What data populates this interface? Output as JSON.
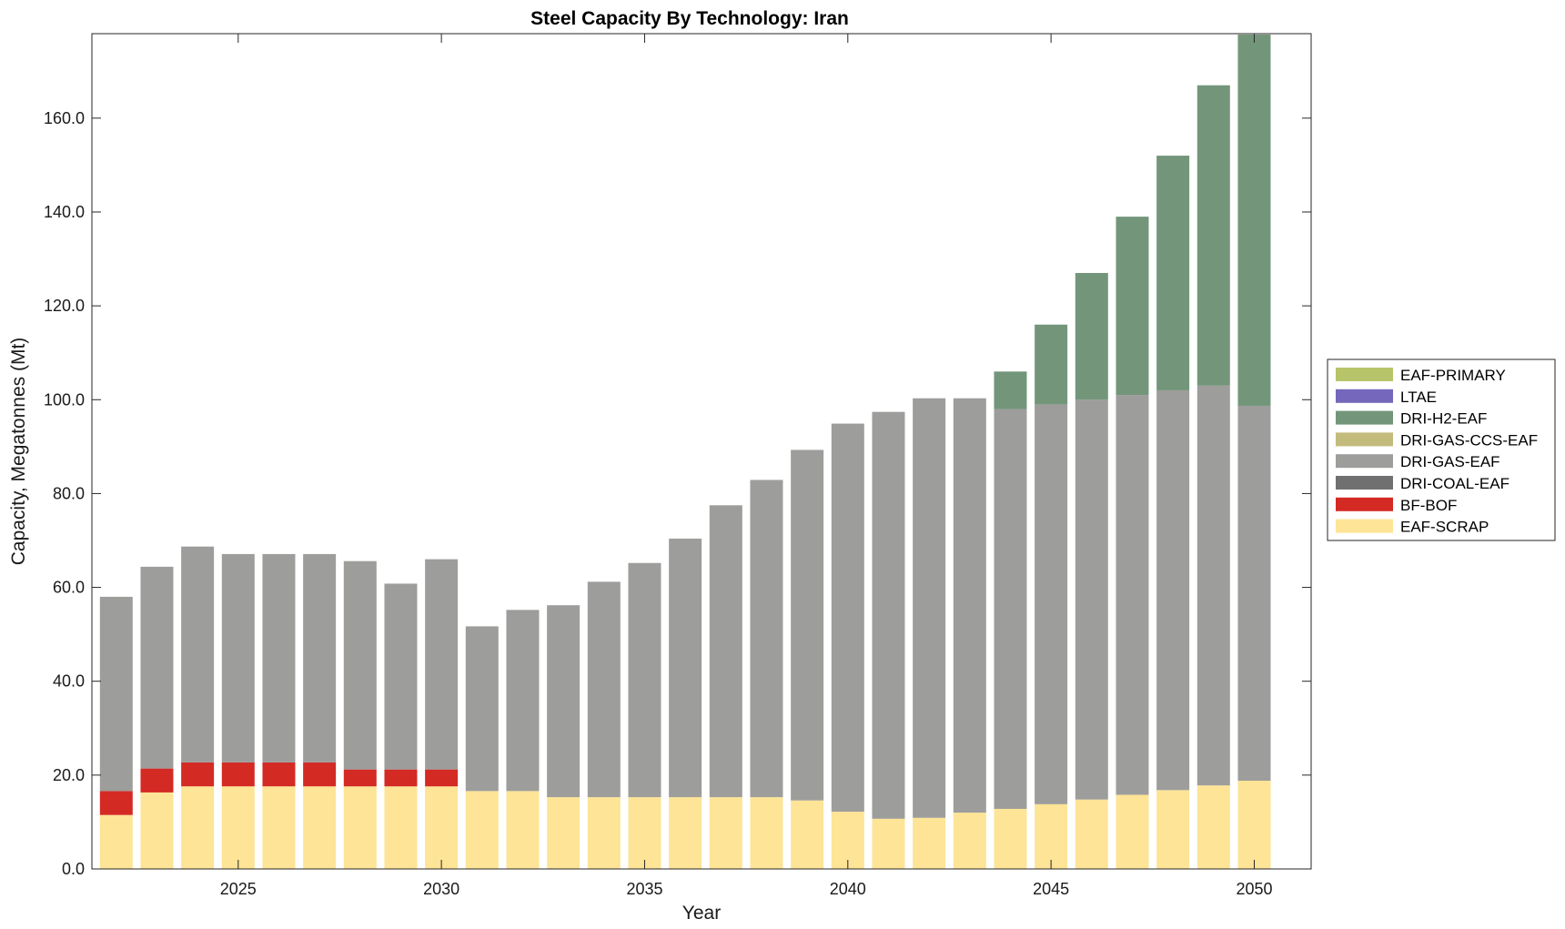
{
  "chart_data": {
    "type": "bar",
    "stacked": true,
    "title": "Steel Capacity By Technology: Iran",
    "xlabel": "Year",
    "ylabel": "Capacity, Megatonnes (Mt)",
    "ylim": [
      0,
      178
    ],
    "xlim": [
      2021.4,
      2051.4
    ],
    "yticks": [
      0,
      20,
      40,
      60,
      80,
      100,
      120,
      140,
      160
    ],
    "ytick_labels": [
      "0.0",
      "20.0",
      "40.0",
      "60.0",
      "80.0",
      "100.0",
      "120.0",
      "140.0",
      "160.0"
    ],
    "xticks": [
      2025,
      2030,
      2035,
      2040,
      2045,
      2050
    ],
    "xtick_labels": [
      "2025",
      "2030",
      "2035",
      "2040",
      "2045",
      "2050"
    ],
    "legend_position": "right-center",
    "categories": [
      2022,
      2023,
      2024,
      2025,
      2026,
      2027,
      2028,
      2029,
      2030,
      2031,
      2032,
      2033,
      2034,
      2035,
      2036,
      2037,
      2038,
      2039,
      2040,
      2041,
      2042,
      2043,
      2044,
      2045,
      2046,
      2047,
      2048,
      2049,
      2050
    ],
    "series": [
      {
        "name": "EAF-SCRAP",
        "color": "#fde496",
        "values": [
          11.5,
          16.3,
          17.6,
          17.6,
          17.6,
          17.6,
          17.6,
          17.6,
          17.6,
          16.6,
          16.6,
          15.3,
          15.3,
          15.3,
          15.3,
          15.3,
          15.3,
          14.6,
          12.2,
          10.7,
          10.9,
          12.0,
          12.8,
          13.8,
          14.8,
          15.8,
          16.8,
          17.8,
          18.8
        ]
      },
      {
        "name": "BF-BOF",
        "color": "#d42a24",
        "values": [
          5.1,
          5.1,
          5.1,
          5.1,
          5.1,
          5.1,
          3.6,
          3.6,
          3.6,
          0,
          0,
          0,
          0,
          0,
          0,
          0,
          0,
          0,
          0,
          0,
          0,
          0,
          0,
          0,
          0,
          0,
          0,
          0,
          0
        ]
      },
      {
        "name": "DRI-COAL-EAF",
        "color": "#707070",
        "values": [
          0,
          0,
          0,
          0,
          0,
          0,
          0,
          0,
          0,
          0,
          0,
          0,
          0,
          0,
          0,
          0,
          0,
          0,
          0,
          0,
          0,
          0,
          0,
          0,
          0,
          0,
          0,
          0,
          0
        ]
      },
      {
        "name": "DRI-GAS-EAF",
        "color": "#9d9d9b",
        "values": [
          41.4,
          43.0,
          46.0,
          44.4,
          44.4,
          44.4,
          44.4,
          39.6,
          44.8,
          35.1,
          38.6,
          40.9,
          45.9,
          49.9,
          55.1,
          62.2,
          67.6,
          74.7,
          82.7,
          86.7,
          89.4,
          88.3,
          85.2,
          85.2,
          85.2,
          85.2,
          85.2,
          85.2,
          79.9
        ]
      },
      {
        "name": "DRI-GAS-CCS-EAF",
        "color": "#c3bb7c",
        "values": [
          0,
          0,
          0,
          0,
          0,
          0,
          0,
          0,
          0,
          0,
          0,
          0,
          0,
          0,
          0,
          0,
          0,
          0,
          0,
          0,
          0,
          0,
          0,
          0,
          0,
          0,
          0,
          0,
          0
        ]
      },
      {
        "name": "DRI-H2-EAF",
        "color": "#73967a",
        "values": [
          0,
          0,
          0,
          0,
          0,
          0,
          0,
          0,
          0,
          0,
          0,
          0,
          0,
          0,
          0,
          0,
          0,
          0,
          0,
          0,
          0,
          0,
          8.0,
          17.0,
          27.0,
          38.0,
          50.0,
          64.0,
          79.1
        ]
      },
      {
        "name": "LTAE",
        "color": "#7567bb",
        "values": [
          0,
          0,
          0,
          0,
          0,
          0,
          0,
          0,
          0,
          0,
          0,
          0,
          0,
          0,
          0,
          0,
          0,
          0,
          0,
          0,
          0,
          0,
          0,
          0,
          0,
          0,
          0,
          0,
          0
        ]
      },
      {
        "name": "EAF-PRIMARY",
        "color": "#b7c46a",
        "values": [
          0,
          0,
          0,
          0,
          0,
          0,
          0,
          0,
          0,
          0,
          0,
          0,
          0,
          0,
          0,
          0,
          0,
          0,
          0,
          0,
          0,
          0,
          0,
          0,
          0,
          0,
          0,
          0,
          0
        ]
      }
    ],
    "legend_order": [
      "EAF-PRIMARY",
      "LTAE",
      "DRI-H2-EAF",
      "DRI-GAS-CCS-EAF",
      "DRI-GAS-EAF",
      "DRI-COAL-EAF",
      "BF-BOF",
      "EAF-SCRAP"
    ]
  }
}
